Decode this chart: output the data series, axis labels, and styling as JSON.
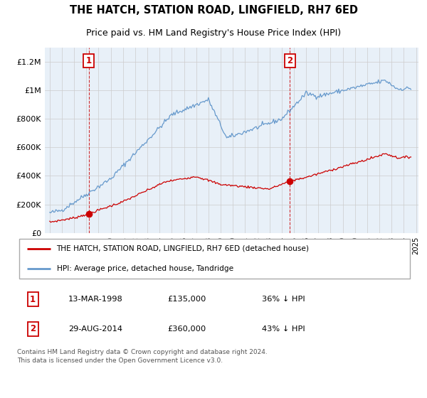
{
  "title": "THE HATCH, STATION ROAD, LINGFIELD, RH7 6ED",
  "subtitle": "Price paid vs. HM Land Registry's House Price Index (HPI)",
  "red_label": "THE HATCH, STATION ROAD, LINGFIELD, RH7 6ED (detached house)",
  "blue_label": "HPI: Average price, detached house, Tandridge",
  "footer": "Contains HM Land Registry data © Crown copyright and database right 2024.\nThis data is licensed under the Open Government Licence v3.0.",
  "ylim": [
    0,
    1300000
  ],
  "yticks": [
    0,
    200000,
    400000,
    600000,
    800000,
    1000000,
    1200000
  ],
  "ytick_labels": [
    "£0",
    "£200K",
    "£400K",
    "£600K",
    "£800K",
    "£1M",
    "£1.2M"
  ],
  "sale1_year": 1998.19,
  "sale1_price": 135000,
  "sale2_year": 2014.66,
  "sale2_price": 360000,
  "table1": [
    "1",
    "13-MAR-1998",
    "£135,000",
    "36% ↓ HPI"
  ],
  "table2": [
    "2",
    "29-AUG-2014",
    "£360,000",
    "43% ↓ HPI"
  ],
  "red_color": "#cc0000",
  "blue_color": "#6699cc",
  "grid_color": "#cccccc",
  "bg_color": "#ffffff",
  "chart_bg": "#e8f0f8",
  "xlim_left": 1994.6,
  "xlim_right": 2025.2
}
